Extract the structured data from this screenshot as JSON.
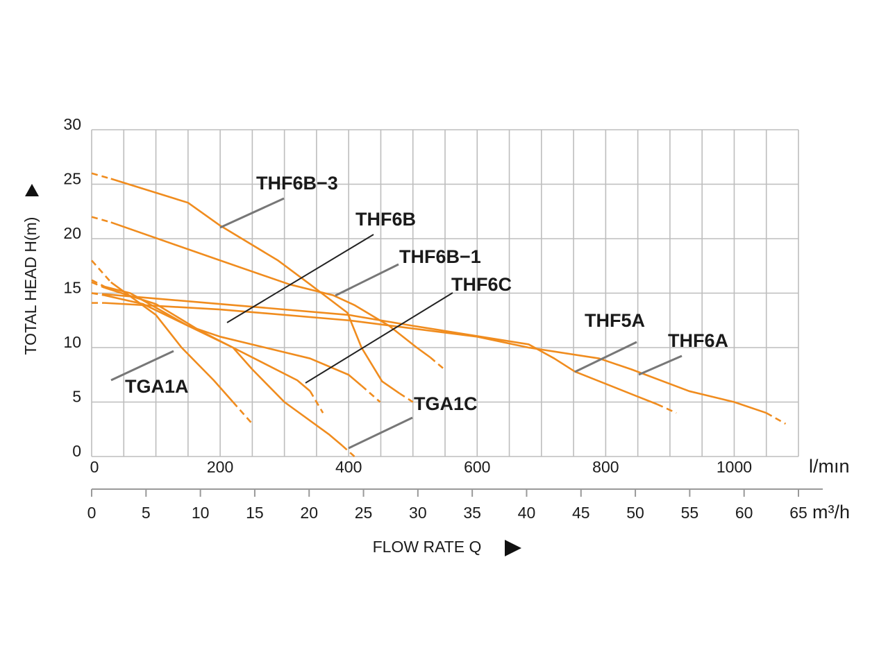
{
  "chart_data": {
    "type": "line",
    "ylabel": "TOTAL HEAD H(m)",
    "xlabel": "FLOW RATE Q",
    "xunit": "l/mın",
    "x2unit": "m³/h",
    "xlim": [
      0,
      1100
    ],
    "xticks": [
      0,
      200,
      400,
      600,
      800,
      1000
    ],
    "xgrid": [
      0,
      50,
      100,
      150,
      200,
      250,
      300,
      350,
      400,
      450,
      500,
      550,
      600,
      650,
      700,
      750,
      800,
      850,
      900,
      950,
      1000,
      1050,
      1100
    ],
    "ylim": [
      0,
      30
    ],
    "yticks": [
      0,
      5,
      10,
      15,
      20,
      25,
      30
    ],
    "x2lim": [
      0,
      65
    ],
    "x2ticks": [
      0,
      5,
      10,
      15,
      20,
      25,
      30,
      35,
      40,
      45,
      50,
      55,
      60,
      65
    ],
    "grid": true,
    "series": [
      {
        "name": "THF6B−3",
        "color": "#f08c1e",
        "dashed_start": true,
        "dashed_end": true,
        "x": [
          0,
          30,
          150,
          200,
          290,
          340,
          398,
          420,
          452,
          479,
          500
        ],
        "values": [
          26,
          25.5,
          23.3,
          21.2,
          18,
          15.8,
          13.2,
          10,
          6.9,
          5.8,
          5
        ]
      },
      {
        "name": "THF6B",
        "color": "#f08c1e",
        "dashed_start": true,
        "dashed_end": true,
        "x": [
          0,
          20,
          60,
          150,
          200,
          270,
          340,
          400,
          420,
          449
        ],
        "values": [
          16.2,
          15.6,
          15,
          12,
          11,
          10,
          9,
          7.5,
          6.5,
          5
        ]
      },
      {
        "name": "THF6B−1",
        "color": "#f08c1e",
        "dashed_start": true,
        "dashed_end": true,
        "x": [
          0,
          30,
          200,
          308,
          376,
          409,
          463,
          506,
          527,
          549
        ],
        "values": [
          22,
          21.5,
          18,
          15.8,
          14.8,
          13.9,
          12,
          10,
          9.1,
          8
        ]
      },
      {
        "name": "THF6C",
        "color": "#f08c1e",
        "dashed_start": true,
        "dashed_end": true,
        "x": [
          0,
          20,
          100,
          170,
          220,
          270,
          320,
          340,
          360
        ],
        "values": [
          16,
          15.5,
          14,
          11.5,
          10,
          8.5,
          7,
          6,
          4
        ]
      },
      {
        "name": "THF5A",
        "color": "#f08c1e",
        "dashed_start": true,
        "dashed_end": true,
        "x": [
          0,
          20,
          200,
          400,
          500,
          680,
          720,
          752,
          850,
          880,
          910
        ],
        "values": [
          15,
          14.9,
          14,
          13,
          12,
          10.3,
          9,
          7.8,
          5.5,
          4.8,
          4
        ]
      },
      {
        "name": "THF6A",
        "color": "#f08c1e",
        "dashed_start": true,
        "dashed_end": true,
        "x": [
          0,
          20,
          200,
          400,
          600,
          680,
          790,
          840,
          930,
          1000,
          1050,
          1080
        ],
        "values": [
          14.1,
          14.1,
          13.5,
          12.5,
          11,
          10,
          9,
          8,
          6,
          5,
          4,
          3
        ]
      },
      {
        "name": "TGA1A",
        "color": "#f08c1e",
        "dashed_start": true,
        "dashed_end": true,
        "x": [
          0,
          30,
          100,
          140,
          190,
          220,
          250
        ],
        "values": [
          18,
          16,
          13,
          10,
          7,
          5,
          3
        ]
      },
      {
        "name": "TGA1C",
        "color": "#f08c1e",
        "dashed_start": true,
        "dashed_end": true,
        "x": [
          0,
          20,
          80,
          150,
          220,
          250,
          300,
          370,
          390,
          409
        ],
        "values": [
          15,
          14.8,
          14,
          12,
          10,
          8,
          5,
          2,
          1,
          0
        ]
      }
    ]
  }
}
